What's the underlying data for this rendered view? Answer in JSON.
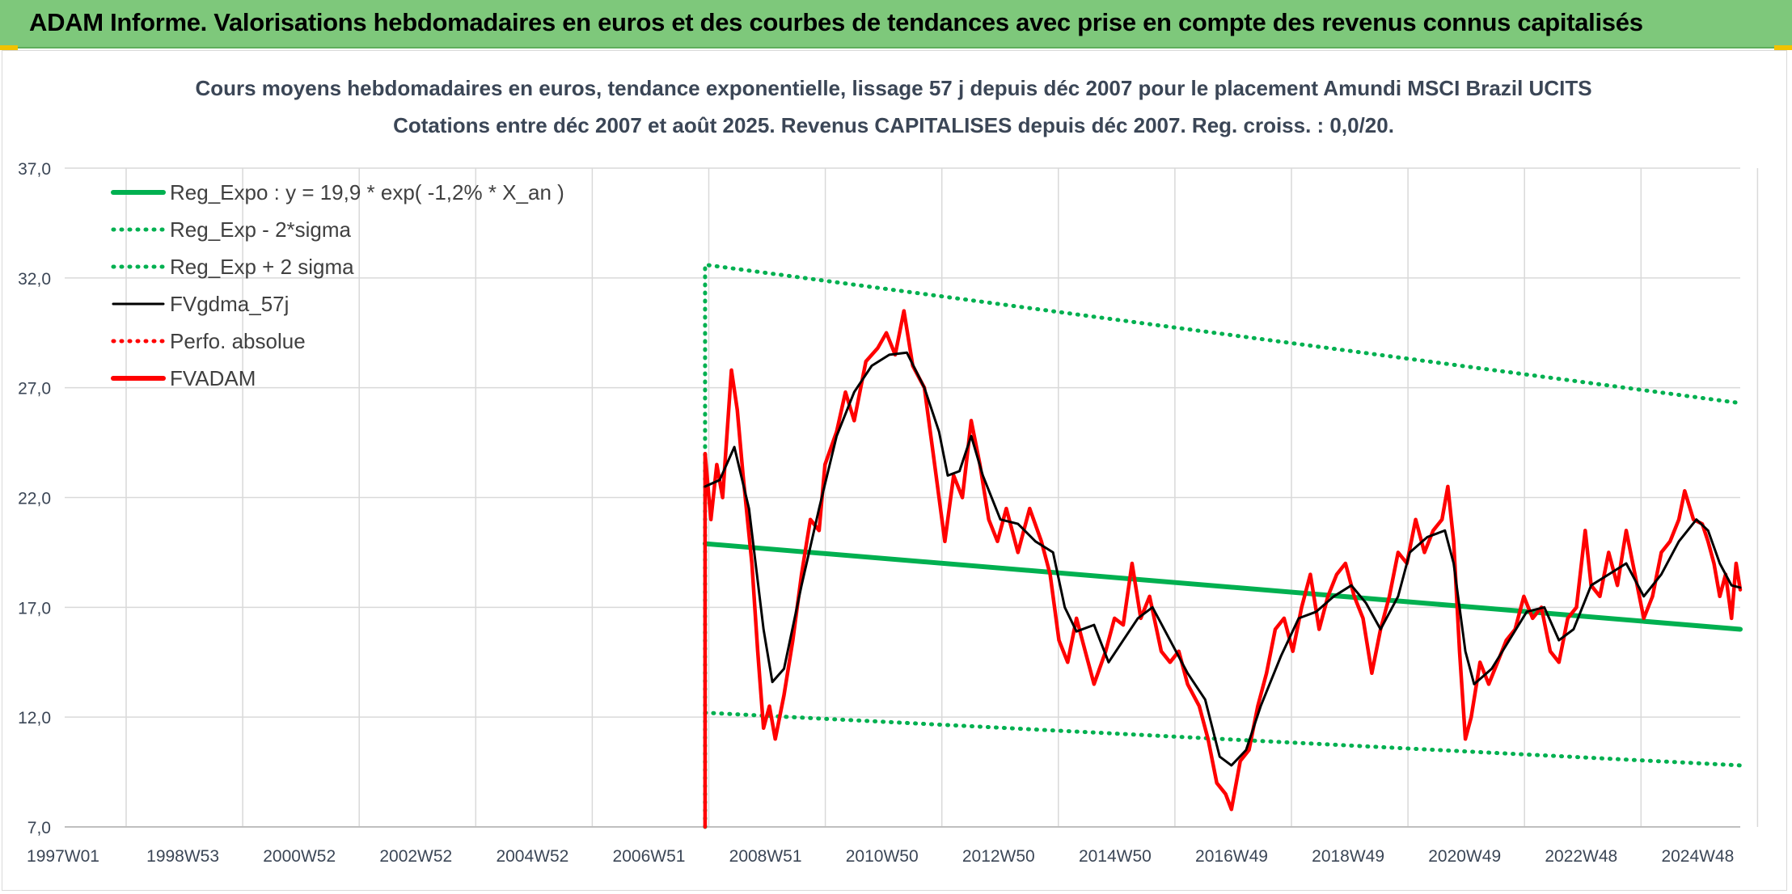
{
  "banner": {
    "title": "ADAM Informe. Valorisations hebdomadaires en euros et des courbes de tendances avec prise en compte des revenus connus capitalisés"
  },
  "colors": {
    "banner_bg": "#7ec87b",
    "green": "#00b050",
    "black": "#000000",
    "red": "#ff0000",
    "grid": "#d9d9d9",
    "text": "#3b4656"
  },
  "chart_data": {
    "type": "line",
    "title": "Cours moyens hebdomadaires en euros, tendance exponentielle, lissage 57 j depuis déc 2007 pour le placement Amundi MSCI Brazil UCITS",
    "subtitle": "Cotations entre déc 2007 et août 2025. Revenus CAPITALISES depuis déc 2007. Reg. croiss. : 0,0/20.",
    "xlabel": "",
    "ylabel": "",
    "ylim": [
      7,
      37
    ],
    "y_ticks": [
      "7,0",
      "12,0",
      "17,0",
      "22,0",
      "27,0",
      "32,0",
      "37,0"
    ],
    "x_ticks": [
      "1997W01",
      "1998W53",
      "2000W52",
      "2002W52",
      "2004W52",
      "2006W51",
      "2008W51",
      "2010W50",
      "2012W50",
      "2014W50",
      "2016W49",
      "2018W49",
      "2020W49",
      "2022W48",
      "2024W48"
    ],
    "x_range": [
      1997.0,
      2025.65
    ],
    "grid": true,
    "legend_position": "top-left",
    "series": [
      {
        "name": "Reg_Expo : y = 19,9 * exp( -1,2% *  X_an )",
        "style": "solid-thick",
        "color": "#00b050",
        "points": [
          [
            2007.95,
            19.9
          ],
          [
            2025.65,
            16.0
          ]
        ]
      },
      {
        "name": "Reg_Exp - 2*sigma",
        "style": "dotted",
        "color": "#00b050",
        "points": [
          [
            2007.95,
            12.2
          ],
          [
            2025.65,
            9.8
          ]
        ]
      },
      {
        "name": "Reg_Exp + 2 sigma",
        "style": "dotted",
        "color": "#00b050",
        "points": [
          [
            2007.95,
            7.0
          ],
          [
            2007.95,
            32.6
          ],
          [
            2025.65,
            26.3
          ]
        ]
      },
      {
        "name": "FVgdma_57j",
        "style": "solid",
        "color": "#000000",
        "points": [
          [
            2007.95,
            22.5
          ],
          [
            2008.2,
            22.8
          ],
          [
            2008.45,
            24.3
          ],
          [
            2008.7,
            21.5
          ],
          [
            2008.95,
            16.0
          ],
          [
            2009.1,
            13.6
          ],
          [
            2009.3,
            14.2
          ],
          [
            2009.6,
            18.0
          ],
          [
            2009.9,
            21.5
          ],
          [
            2010.2,
            24.8
          ],
          [
            2010.5,
            26.8
          ],
          [
            2010.8,
            28.0
          ],
          [
            2011.1,
            28.5
          ],
          [
            2011.4,
            28.6
          ],
          [
            2011.7,
            27.0
          ],
          [
            2011.95,
            25.0
          ],
          [
            2012.1,
            23.0
          ],
          [
            2012.3,
            23.2
          ],
          [
            2012.5,
            24.8
          ],
          [
            2012.7,
            23.0
          ],
          [
            2013.0,
            21.0
          ],
          [
            2013.3,
            20.8
          ],
          [
            2013.6,
            20.0
          ],
          [
            2013.9,
            19.5
          ],
          [
            2014.1,
            17.0
          ],
          [
            2014.3,
            15.9
          ],
          [
            2014.6,
            16.2
          ],
          [
            2014.85,
            14.5
          ],
          [
            2015.1,
            15.5
          ],
          [
            2015.35,
            16.5
          ],
          [
            2015.6,
            17.0
          ],
          [
            2015.9,
            15.5
          ],
          [
            2016.2,
            14.0
          ],
          [
            2016.5,
            12.8
          ],
          [
            2016.75,
            10.2
          ],
          [
            2016.95,
            9.8
          ],
          [
            2017.2,
            10.5
          ],
          [
            2017.45,
            12.5
          ],
          [
            2017.8,
            14.8
          ],
          [
            2018.1,
            16.5
          ],
          [
            2018.4,
            16.8
          ],
          [
            2018.7,
            17.5
          ],
          [
            2019.0,
            18.0
          ],
          [
            2019.25,
            17.2
          ],
          [
            2019.5,
            16.0
          ],
          [
            2019.8,
            17.5
          ],
          [
            2020.0,
            19.5
          ],
          [
            2020.3,
            20.2
          ],
          [
            2020.6,
            20.5
          ],
          [
            2020.75,
            19.0
          ],
          [
            2020.95,
            15.0
          ],
          [
            2021.1,
            13.5
          ],
          [
            2021.4,
            14.2
          ],
          [
            2021.7,
            15.5
          ],
          [
            2022.0,
            16.8
          ],
          [
            2022.3,
            17.0
          ],
          [
            2022.55,
            15.5
          ],
          [
            2022.8,
            16.0
          ],
          [
            2023.1,
            18.0
          ],
          [
            2023.4,
            18.5
          ],
          [
            2023.7,
            19.0
          ],
          [
            2024.0,
            17.5
          ],
          [
            2024.3,
            18.5
          ],
          [
            2024.6,
            20.0
          ],
          [
            2024.9,
            21.0
          ],
          [
            2025.1,
            20.5
          ],
          [
            2025.3,
            19.0
          ],
          [
            2025.5,
            18.0
          ],
          [
            2025.65,
            17.9
          ]
        ]
      },
      {
        "name": "Perfo. absolue",
        "style": "dotted",
        "color": "#ff0000",
        "points": []
      },
      {
        "name": "FVADAM",
        "style": "solid-thick",
        "color": "#ff0000",
        "points": [
          [
            2007.95,
            7.0
          ],
          [
            2007.95,
            24.0
          ],
          [
            2008.05,
            21.0
          ],
          [
            2008.15,
            23.5
          ],
          [
            2008.25,
            22.0
          ],
          [
            2008.4,
            27.8
          ],
          [
            2008.5,
            26.0
          ],
          [
            2008.6,
            23.0
          ],
          [
            2008.75,
            19.0
          ],
          [
            2008.85,
            15.0
          ],
          [
            2008.95,
            11.5
          ],
          [
            2009.05,
            12.5
          ],
          [
            2009.15,
            11.0
          ],
          [
            2009.3,
            13.0
          ],
          [
            2009.45,
            15.5
          ],
          [
            2009.6,
            18.5
          ],
          [
            2009.75,
            21.0
          ],
          [
            2009.9,
            20.5
          ],
          [
            2010.0,
            23.5
          ],
          [
            2010.2,
            25.0
          ],
          [
            2010.35,
            26.8
          ],
          [
            2010.5,
            25.5
          ],
          [
            2010.7,
            28.2
          ],
          [
            2010.9,
            28.8
          ],
          [
            2011.05,
            29.5
          ],
          [
            2011.2,
            28.5
          ],
          [
            2011.35,
            30.5
          ],
          [
            2011.5,
            28.0
          ],
          [
            2011.7,
            27.0
          ],
          [
            2011.85,
            24.0
          ],
          [
            2011.95,
            22.0
          ],
          [
            2012.05,
            20.0
          ],
          [
            2012.2,
            23.0
          ],
          [
            2012.35,
            22.0
          ],
          [
            2012.5,
            25.5
          ],
          [
            2012.65,
            23.5
          ],
          [
            2012.8,
            21.0
          ],
          [
            2012.95,
            20.0
          ],
          [
            2013.1,
            21.5
          ],
          [
            2013.3,
            19.5
          ],
          [
            2013.5,
            21.5
          ],
          [
            2013.7,
            20.0
          ],
          [
            2013.85,
            18.5
          ],
          [
            2014.0,
            15.5
          ],
          [
            2014.15,
            14.5
          ],
          [
            2014.3,
            16.5
          ],
          [
            2014.45,
            15.0
          ],
          [
            2014.6,
            13.5
          ],
          [
            2014.8,
            15.0
          ],
          [
            2014.95,
            16.5
          ],
          [
            2015.1,
            16.2
          ],
          [
            2015.25,
            19.0
          ],
          [
            2015.4,
            16.5
          ],
          [
            2015.55,
            17.5
          ],
          [
            2015.75,
            15.0
          ],
          [
            2015.9,
            14.5
          ],
          [
            2016.05,
            15.0
          ],
          [
            2016.2,
            13.5
          ],
          [
            2016.4,
            12.5
          ],
          [
            2016.55,
            11.0
          ],
          [
            2016.7,
            9.0
          ],
          [
            2016.85,
            8.5
          ],
          [
            2016.95,
            7.8
          ],
          [
            2017.1,
            10.0
          ],
          [
            2017.25,
            10.5
          ],
          [
            2017.4,
            12.5
          ],
          [
            2017.55,
            14.0
          ],
          [
            2017.7,
            16.0
          ],
          [
            2017.85,
            16.5
          ],
          [
            2018.0,
            15.0
          ],
          [
            2018.15,
            17.0
          ],
          [
            2018.3,
            18.5
          ],
          [
            2018.45,
            16.0
          ],
          [
            2018.6,
            17.5
          ],
          [
            2018.75,
            18.5
          ],
          [
            2018.9,
            19.0
          ],
          [
            2019.05,
            17.5
          ],
          [
            2019.2,
            16.5
          ],
          [
            2019.35,
            14.0
          ],
          [
            2019.5,
            16.0
          ],
          [
            2019.65,
            17.5
          ],
          [
            2019.8,
            19.5
          ],
          [
            2019.95,
            19.0
          ],
          [
            2020.1,
            21.0
          ],
          [
            2020.25,
            19.5
          ],
          [
            2020.4,
            20.5
          ],
          [
            2020.55,
            21.0
          ],
          [
            2020.65,
            22.5
          ],
          [
            2020.75,
            20.0
          ],
          [
            2020.85,
            15.0
          ],
          [
            2020.95,
            11.0
          ],
          [
            2021.05,
            12.0
          ],
          [
            2021.2,
            14.5
          ],
          [
            2021.35,
            13.5
          ],
          [
            2021.5,
            14.5
          ],
          [
            2021.65,
            15.5
          ],
          [
            2021.8,
            16.0
          ],
          [
            2021.95,
            17.5
          ],
          [
            2022.1,
            16.5
          ],
          [
            2022.25,
            17.0
          ],
          [
            2022.4,
            15.0
          ],
          [
            2022.55,
            14.5
          ],
          [
            2022.7,
            16.5
          ],
          [
            2022.85,
            17.0
          ],
          [
            2023.0,
            20.5
          ],
          [
            2023.1,
            18.0
          ],
          [
            2023.25,
            17.5
          ],
          [
            2023.4,
            19.5
          ],
          [
            2023.55,
            18.0
          ],
          [
            2023.7,
            20.5
          ],
          [
            2023.85,
            18.5
          ],
          [
            2024.0,
            16.5
          ],
          [
            2024.15,
            17.5
          ],
          [
            2024.3,
            19.5
          ],
          [
            2024.45,
            20.0
          ],
          [
            2024.6,
            21.0
          ],
          [
            2024.7,
            22.3
          ],
          [
            2024.85,
            21.0
          ],
          [
            2025.0,
            20.8
          ],
          [
            2025.1,
            20.0
          ],
          [
            2025.2,
            19.0
          ],
          [
            2025.3,
            17.5
          ],
          [
            2025.4,
            18.5
          ],
          [
            2025.5,
            16.5
          ],
          [
            2025.58,
            19.0
          ],
          [
            2025.65,
            17.8
          ]
        ]
      }
    ]
  }
}
